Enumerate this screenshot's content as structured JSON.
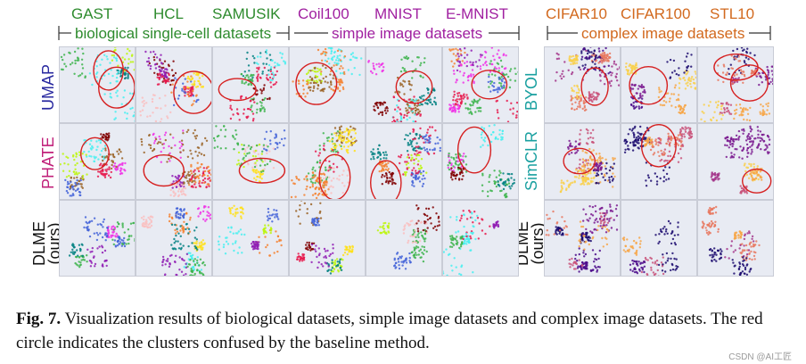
{
  "figure": {
    "columns_left": [
      "GAST",
      "HCL",
      "SAMUSIK",
      "Coil100",
      "MNIST",
      "E-MNIST"
    ],
    "columns_right": [
      "CIFAR10",
      "CIFAR100",
      "STL10"
    ],
    "groups": {
      "bio": "biological single-cell datasets",
      "simple": "simple image datasets",
      "complex": "complex image datasets"
    },
    "rows_left": [
      "UMAP",
      "PHATE",
      "DLME\n(ours)"
    ],
    "rows_right": [
      "BYOL",
      "SimCLR",
      "DLME\n(ours)"
    ],
    "colors": {
      "bio_header": "#2e8b2e",
      "simple_header": "#a020a0",
      "complex_header": "#d2691e",
      "umap": "#2a2aa0",
      "phate": "#c0207a",
      "byol": "#1aa0a0",
      "simclr": "#1aa0a0",
      "circle": "#d62020"
    }
  },
  "caption": {
    "label": "Fig. 7.",
    "text": "Visualization results of biological datasets, simple image datasets and complex image datasets. The red circle indicates the clusters confused by the baseline method."
  },
  "watermark": "CSDN @AI工匠"
}
